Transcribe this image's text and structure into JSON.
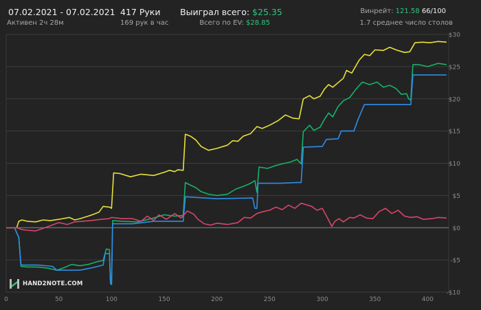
{
  "header": {
    "date_range": "07.02.2021 - 07.02.2021",
    "active_time": "Активен 2ч 28м",
    "hands": "417 Руки",
    "hands_per_hour": "169 рук в час",
    "won_total_label": "Выиграл всего:",
    "won_total_value": "$25.35",
    "ev_total_label": "Всего по EV:",
    "ev_total_value": "$28.85",
    "winrate_label": "Винрейт:",
    "winrate_value": "121.58",
    "winrate_fraction": "66/100",
    "tables_avg": "1.7 среднее число столов"
  },
  "logo": {
    "text": "HAND2NOTE.COM"
  },
  "chart_data": {
    "type": "line",
    "xlim": [
      0,
      420
    ],
    "ylim": [
      -10,
      30
    ],
    "x_ticks": [
      0,
      50,
      100,
      150,
      200,
      250,
      300,
      350,
      400
    ],
    "y_ticks": [
      30,
      25,
      20,
      15,
      10,
      5,
      0,
      -5,
      -10
    ],
    "y_tick_labels": [
      "$30",
      "$25",
      "$20",
      "$15",
      "$10",
      "$5",
      "$0",
      "-$5",
      "-$10"
    ],
    "grid": true,
    "series": [
      {
        "color": "#e8e23a",
        "points": [
          [
            0,
            0
          ],
          [
            10,
            0
          ],
          [
            12,
            1
          ],
          [
            15,
            1.2
          ],
          [
            20,
            1
          ],
          [
            28,
            0.9
          ],
          [
            35,
            1.2
          ],
          [
            42,
            1.1
          ],
          [
            50,
            1.3
          ],
          [
            60,
            1.6
          ],
          [
            65,
            1.2
          ],
          [
            70,
            1.4
          ],
          [
            80,
            1.9
          ],
          [
            88,
            2.4
          ],
          [
            92,
            3.3
          ],
          [
            98,
            3.2
          ],
          [
            100,
            3.0
          ],
          [
            102,
            8.5
          ],
          [
            108,
            8.4
          ],
          [
            118,
            7.9
          ],
          [
            128,
            8.3
          ],
          [
            140,
            8.1
          ],
          [
            150,
            8.6
          ],
          [
            155,
            8.9
          ],
          [
            160,
            8.7
          ],
          [
            163,
            9.0
          ],
          [
            168,
            8.9
          ],
          [
            170,
            14.5
          ],
          [
            175,
            14.2
          ],
          [
            180,
            13.6
          ],
          [
            185,
            12.6
          ],
          [
            192,
            12.0
          ],
          [
            200,
            12.3
          ],
          [
            210,
            12.8
          ],
          [
            215,
            13.5
          ],
          [
            220,
            13.4
          ],
          [
            225,
            14.2
          ],
          [
            232,
            14.6
          ],
          [
            238,
            15.7
          ],
          [
            243,
            15.4
          ],
          [
            250,
            15.9
          ],
          [
            258,
            16.6
          ],
          [
            265,
            17.5
          ],
          [
            272,
            17.0
          ],
          [
            278,
            16.9
          ],
          [
            282,
            20.0
          ],
          [
            288,
            20.5
          ],
          [
            292,
            20.0
          ],
          [
            298,
            20.4
          ],
          [
            302,
            21.5
          ],
          [
            306,
            22.2
          ],
          [
            310,
            21.8
          ],
          [
            315,
            22.5
          ],
          [
            320,
            23.2
          ],
          [
            323,
            24.4
          ],
          [
            328,
            24.0
          ],
          [
            335,
            26.0
          ],
          [
            340,
            26.9
          ],
          [
            345,
            26.7
          ],
          [
            350,
            27.6
          ],
          [
            358,
            27.5
          ],
          [
            364,
            28.0
          ],
          [
            370,
            27.6
          ],
          [
            378,
            27.2
          ],
          [
            383,
            27.3
          ],
          [
            388,
            28.7
          ],
          [
            395,
            28.8
          ],
          [
            402,
            28.7
          ],
          [
            410,
            28.9
          ],
          [
            418,
            28.8
          ]
        ]
      },
      {
        "color": "#17b26b",
        "points": [
          [
            0,
            0
          ],
          [
            8,
            0
          ],
          [
            10,
            -0.8
          ],
          [
            12,
            -1.5
          ],
          [
            14,
            -6.0
          ],
          [
            20,
            -6.1
          ],
          [
            30,
            -6.1
          ],
          [
            40,
            -6.3
          ],
          [
            48,
            -6.6
          ],
          [
            55,
            -6.2
          ],
          [
            62,
            -5.7
          ],
          [
            70,
            -5.9
          ],
          [
            78,
            -5.7
          ],
          [
            86,
            -5.3
          ],
          [
            92,
            -5.1
          ],
          [
            95,
            -3.3
          ],
          [
            98,
            -3.4
          ],
          [
            99,
            -8.7
          ],
          [
            100,
            -8.8
          ],
          [
            101,
            1.1
          ],
          [
            110,
            1.0
          ],
          [
            125,
            0.9
          ],
          [
            140,
            1.5
          ],
          [
            150,
            2.0
          ],
          [
            160,
            1.8
          ],
          [
            168,
            1.9
          ],
          [
            170,
            7.0
          ],
          [
            175,
            6.6
          ],
          [
            180,
            6.2
          ],
          [
            185,
            5.6
          ],
          [
            192,
            5.2
          ],
          [
            200,
            5.0
          ],
          [
            210,
            5.2
          ],
          [
            218,
            6.0
          ],
          [
            225,
            6.4
          ],
          [
            232,
            6.9
          ],
          [
            236,
            7.3
          ],
          [
            238,
            5.5
          ],
          [
            240,
            9.4
          ],
          [
            248,
            9.2
          ],
          [
            255,
            9.6
          ],
          [
            262,
            9.9
          ],
          [
            270,
            10.2
          ],
          [
            276,
            10.6
          ],
          [
            280,
            9.9
          ],
          [
            282,
            14.9
          ],
          [
            288,
            15.9
          ],
          [
            292,
            15.1
          ],
          [
            298,
            15.6
          ],
          [
            302,
            16.8
          ],
          [
            306,
            17.8
          ],
          [
            310,
            17.2
          ],
          [
            315,
            18.8
          ],
          [
            320,
            19.7
          ],
          [
            326,
            20.2
          ],
          [
            332,
            21.5
          ],
          [
            338,
            22.6
          ],
          [
            345,
            22.2
          ],
          [
            352,
            22.6
          ],
          [
            358,
            21.8
          ],
          [
            364,
            22.1
          ],
          [
            370,
            21.6
          ],
          [
            375,
            20.7
          ],
          [
            380,
            20.8
          ],
          [
            382,
            20.0
          ],
          [
            384,
            19.8
          ],
          [
            386,
            25.3
          ],
          [
            392,
            25.3
          ],
          [
            400,
            25.0
          ],
          [
            410,
            25.5
          ],
          [
            418,
            25.3
          ]
        ]
      },
      {
        "color": "#2f8ee8",
        "points": [
          [
            0,
            0
          ],
          [
            8,
            0
          ],
          [
            10,
            -0.8
          ],
          [
            12,
            -1.5
          ],
          [
            14,
            -5.8
          ],
          [
            30,
            -5.8
          ],
          [
            44,
            -6.0
          ],
          [
            48,
            -6.6
          ],
          [
            70,
            -6.6
          ],
          [
            82,
            -6.2
          ],
          [
            92,
            -5.8
          ],
          [
            94,
            -4.0
          ],
          [
            98,
            -4.0
          ],
          [
            99,
            -8.6
          ],
          [
            100,
            -8.8
          ],
          [
            101,
            0.6
          ],
          [
            120,
            0.6
          ],
          [
            140,
            1.0
          ],
          [
            168,
            1.0
          ],
          [
            170,
            4.8
          ],
          [
            200,
            4.5
          ],
          [
            234,
            4.6
          ],
          [
            236,
            3.0
          ],
          [
            238,
            3.0
          ],
          [
            239,
            6.9
          ],
          [
            260,
            6.9
          ],
          [
            276,
            7.0
          ],
          [
            280,
            7.0
          ],
          [
            282,
            12.5
          ],
          [
            300,
            12.6
          ],
          [
            304,
            13.7
          ],
          [
            315,
            13.8
          ],
          [
            318,
            15.0
          ],
          [
            330,
            15.0
          ],
          [
            334,
            16.8
          ],
          [
            340,
            19.1
          ],
          [
            380,
            19.1
          ],
          [
            384,
            19.1
          ],
          [
            386,
            23.7
          ],
          [
            418,
            23.7
          ]
        ]
      },
      {
        "color": "#d9456c",
        "points": [
          [
            0,
            0
          ],
          [
            10,
            0
          ],
          [
            15,
            -0.3
          ],
          [
            20,
            -0.4
          ],
          [
            28,
            -0.5
          ],
          [
            35,
            -0.1
          ],
          [
            42,
            0.3
          ],
          [
            50,
            0.8
          ],
          [
            58,
            0.5
          ],
          [
            65,
            0.9
          ],
          [
            72,
            1.0
          ],
          [
            80,
            1.1
          ],
          [
            90,
            1.3
          ],
          [
            98,
            1.4
          ],
          [
            100,
            1.6
          ],
          [
            110,
            1.4
          ],
          [
            120,
            1.4
          ],
          [
            128,
            1.0
          ],
          [
            134,
            1.8
          ],
          [
            140,
            1.1
          ],
          [
            145,
            2.0
          ],
          [
            152,
            1.3
          ],
          [
            160,
            2.2
          ],
          [
            166,
            1.5
          ],
          [
            172,
            2.6
          ],
          [
            178,
            2.1
          ],
          [
            182,
            1.3
          ],
          [
            188,
            0.6
          ],
          [
            194,
            0.4
          ],
          [
            200,
            0.7
          ],
          [
            210,
            0.5
          ],
          [
            220,
            0.8
          ],
          [
            226,
            1.6
          ],
          [
            232,
            1.5
          ],
          [
            238,
            2.2
          ],
          [
            244,
            2.5
          ],
          [
            250,
            2.7
          ],
          [
            256,
            3.2
          ],
          [
            262,
            2.8
          ],
          [
            268,
            3.5
          ],
          [
            274,
            3.0
          ],
          [
            280,
            3.8
          ],
          [
            286,
            3.5
          ],
          [
            290,
            3.3
          ],
          [
            295,
            2.7
          ],
          [
            300,
            3.0
          ],
          [
            305,
            1.5
          ],
          [
            309,
            0.2
          ],
          [
            312,
            1.0
          ],
          [
            316,
            1.4
          ],
          [
            320,
            0.9
          ],
          [
            326,
            1.6
          ],
          [
            330,
            1.5
          ],
          [
            336,
            2.0
          ],
          [
            342,
            1.5
          ],
          [
            348,
            1.4
          ],
          [
            354,
            2.5
          ],
          [
            360,
            3.0
          ],
          [
            366,
            2.2
          ],
          [
            372,
            2.7
          ],
          [
            378,
            1.8
          ],
          [
            384,
            1.6
          ],
          [
            390,
            1.7
          ],
          [
            396,
            1.3
          ],
          [
            404,
            1.4
          ],
          [
            410,
            1.6
          ],
          [
            418,
            1.5
          ]
        ]
      }
    ]
  }
}
